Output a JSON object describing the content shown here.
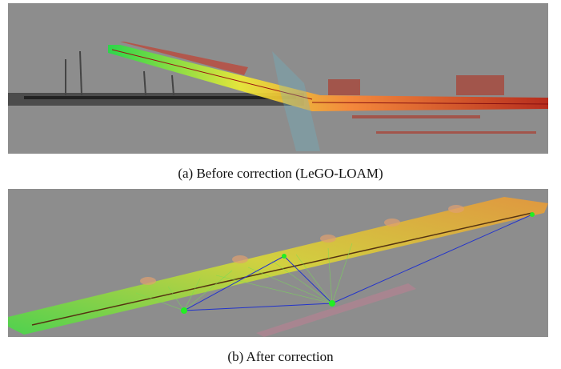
{
  "figure": {
    "panels": [
      {
        "caption": "(a) Before correction (LeGO-LOAM)"
      },
      {
        "caption": "(b) After correction"
      }
    ]
  }
}
